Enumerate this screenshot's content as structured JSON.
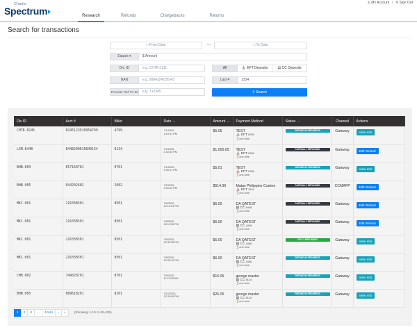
{
  "brand": {
    "charter": "Charter",
    "spectrum": "Spectrum"
  },
  "nav": {
    "tabs": [
      {
        "label": "Research",
        "active": true
      },
      {
        "label": "Refunds",
        "active": false
      },
      {
        "label": "Chargebacks",
        "active": false
      },
      {
        "label": "Returns",
        "active": false
      }
    ],
    "my_account": "My Account",
    "separator": "|",
    "sign_out": "Sign Out"
  },
  "page": {
    "title": "Search for transactions"
  },
  "search": {
    "from_date_placeholder": "From Date",
    "to_date_placeholder": "To Date",
    "date_separator": "—",
    "amount_operator": "Equals ▾",
    "amount_placeholder": "$ Amount",
    "div_id_label": "Div. ID",
    "div_id_placeholder": "e.g. CHTR.1111",
    "ban_label": "BAN",
    "ban_placeholder": "e.g. 9084324235343",
    "provider_ref_label": "Provider Ref TX ID",
    "provider_ref_placeholder": "e.g. T12345",
    "type_filter": {
      "all": "All",
      "eft": "EFT Deposits",
      "cc": "CC Deposits",
      "selected": "All"
    },
    "last4_label": "Last 4",
    "last4_value": "1234",
    "search_button": "Search"
  },
  "table": {
    "columns": [
      "Div ID",
      "Acct #",
      "Biller",
      "Date",
      "Amount",
      "Payment Method",
      "Status",
      "Channel",
      "Actions"
    ],
    "sort_glyph": "↔",
    "rows": [
      {
        "div_id": "CHTR.8245",
        "acct": "8245123910954799",
        "biller": "4799",
        "date": "7/1/2020,",
        "time": "1:15:01 PM",
        "amount": "$5.05",
        "pm_name": "TEST",
        "pm_type": "EFT",
        "pm_digits": "6789",
        "pm_freq": "one-time",
        "status": "REFUND IN PROGRESS",
        "channel": "Gateway",
        "action": "View Info"
      },
      {
        "div_id": "LXM.8448",
        "acct": "8448200015840134",
        "biller": "0134",
        "date": "7/1/2020,",
        "time": "1:30:00 PM",
        "amount": "$1,005.05",
        "pm_name": "TEST",
        "pm_type": "EFT",
        "pm_digits": "6789",
        "pm_freq": "one-time",
        "status": "PARTIALLY REFUNDED",
        "channel": "Gateway",
        "action": "Edit Refund"
      },
      {
        "div_id": "BHN.003",
        "acct": "657160701",
        "biller": "0701",
        "date": "7/1/2020,",
        "time": "1:45:01 PM",
        "amount": "$5.01",
        "pm_name": "TEST",
        "pm_type": "EFT",
        "pm_digits": "6789",
        "pm_freq": "one-time",
        "status": "REFUND IN PROGRESS",
        "channel": "Gateway",
        "action": "View Info"
      },
      {
        "div_id": "BHN.005",
        "acct": "044202602",
        "biller": "2602",
        "date": "7/2/2020,",
        "time": "1:00:00 PM",
        "amount": "$514.99",
        "pm_name": "Matas Philippine Cuisine",
        "pm_type": "EFT",
        "pm_digits": "3234",
        "pm_freq": "one-time",
        "status": "PARTIALLY REFUNDED",
        "channel": "CCMAPP",
        "action": "Edit Refund"
      },
      {
        "div_id": "MKC.001",
        "acct": "216338501",
        "biller": "8501",
        "date": "7/8/2020,",
        "time": "12:15:03 PM",
        "amount": "$6.00",
        "pm_name": "DA QATEST",
        "pm_type": "CC",
        "pm_digits": "4448",
        "pm_freq": "one-time",
        "status": "PARTIALLY REFUNDED",
        "channel": "Gateway",
        "action": "Edit Refund"
      },
      {
        "div_id": "MKC.001",
        "acct": "216338501",
        "biller": "8501",
        "date": "7/8/2020,",
        "time": "12:15:05 PM",
        "amount": "$6.00",
        "pm_name": "DA QATEST",
        "pm_type": "CC",
        "pm_digits": "4448",
        "pm_freq": "one-time",
        "status": "PARTIALLY REFUNDED",
        "channel": "Gateway",
        "action": "Edit Refund"
      },
      {
        "div_id": "MKC.001",
        "acct": "216338501",
        "biller": "8501",
        "date": "7/8/2020,",
        "time": "12:30:08 PM",
        "amount": "$6.00",
        "pm_name": "DA QATEST",
        "pm_type": "CC",
        "pm_digits": "4448",
        "pm_freq": "one-time",
        "status": "FULLY REFUNDED",
        "channel": "Gateway",
        "action": "View Info"
      },
      {
        "div_id": "MKC.001",
        "acct": "216338501",
        "biller": "8501",
        "date": "7/8/2020,",
        "time": "12:30:10 PM",
        "amount": "$6.00",
        "pm_name": "DA QATEST",
        "pm_type": "CC",
        "pm_digits": "4448",
        "pm_freq": "one-time",
        "status": "REFUND IN PROGRESS",
        "channel": "Gateway",
        "action": "View Info"
      },
      {
        "div_id": "CMH.002",
        "acct": "749028701",
        "biller": "8701",
        "date": "7/9/2020,",
        "time": "11:15:00 AM",
        "amount": "$15.05",
        "pm_name": "george master",
        "pm_type": "CC",
        "pm_digits": "5114",
        "pm_freq": "one-time",
        "status": "REFUND IN PROGRESS",
        "channel": "Gateway",
        "action": "View Info"
      },
      {
        "div_id": "BHN.005",
        "acct": "089618201",
        "biller": "8201",
        "date": "7/10/2020,",
        "time": "12:30:00 PM",
        "amount": "$25.05",
        "pm_name": "george master",
        "pm_type": "CC",
        "pm_digits": "5114",
        "pm_freq": "one-time",
        "status": "REFUND IN PROGRESS",
        "channel": "Gateway",
        "action": "View Info"
      }
    ]
  },
  "status_colors": {
    "REFUND IN PROGRESS": "#17a2b8",
    "PARTIALLY REFUNDED": "#343a40",
    "FULLY REFUNDED": "#28a745"
  },
  "action_colors": {
    "View Info": "#17a2b8",
    "Edit Refund": "#0b7ff5"
  },
  "pagination": {
    "pages": [
      "1",
      "2",
      "3",
      "...",
      "4,544",
      "›",
      "»"
    ],
    "active": "1",
    "info": "(Showing 1-10 of 45,435)"
  }
}
